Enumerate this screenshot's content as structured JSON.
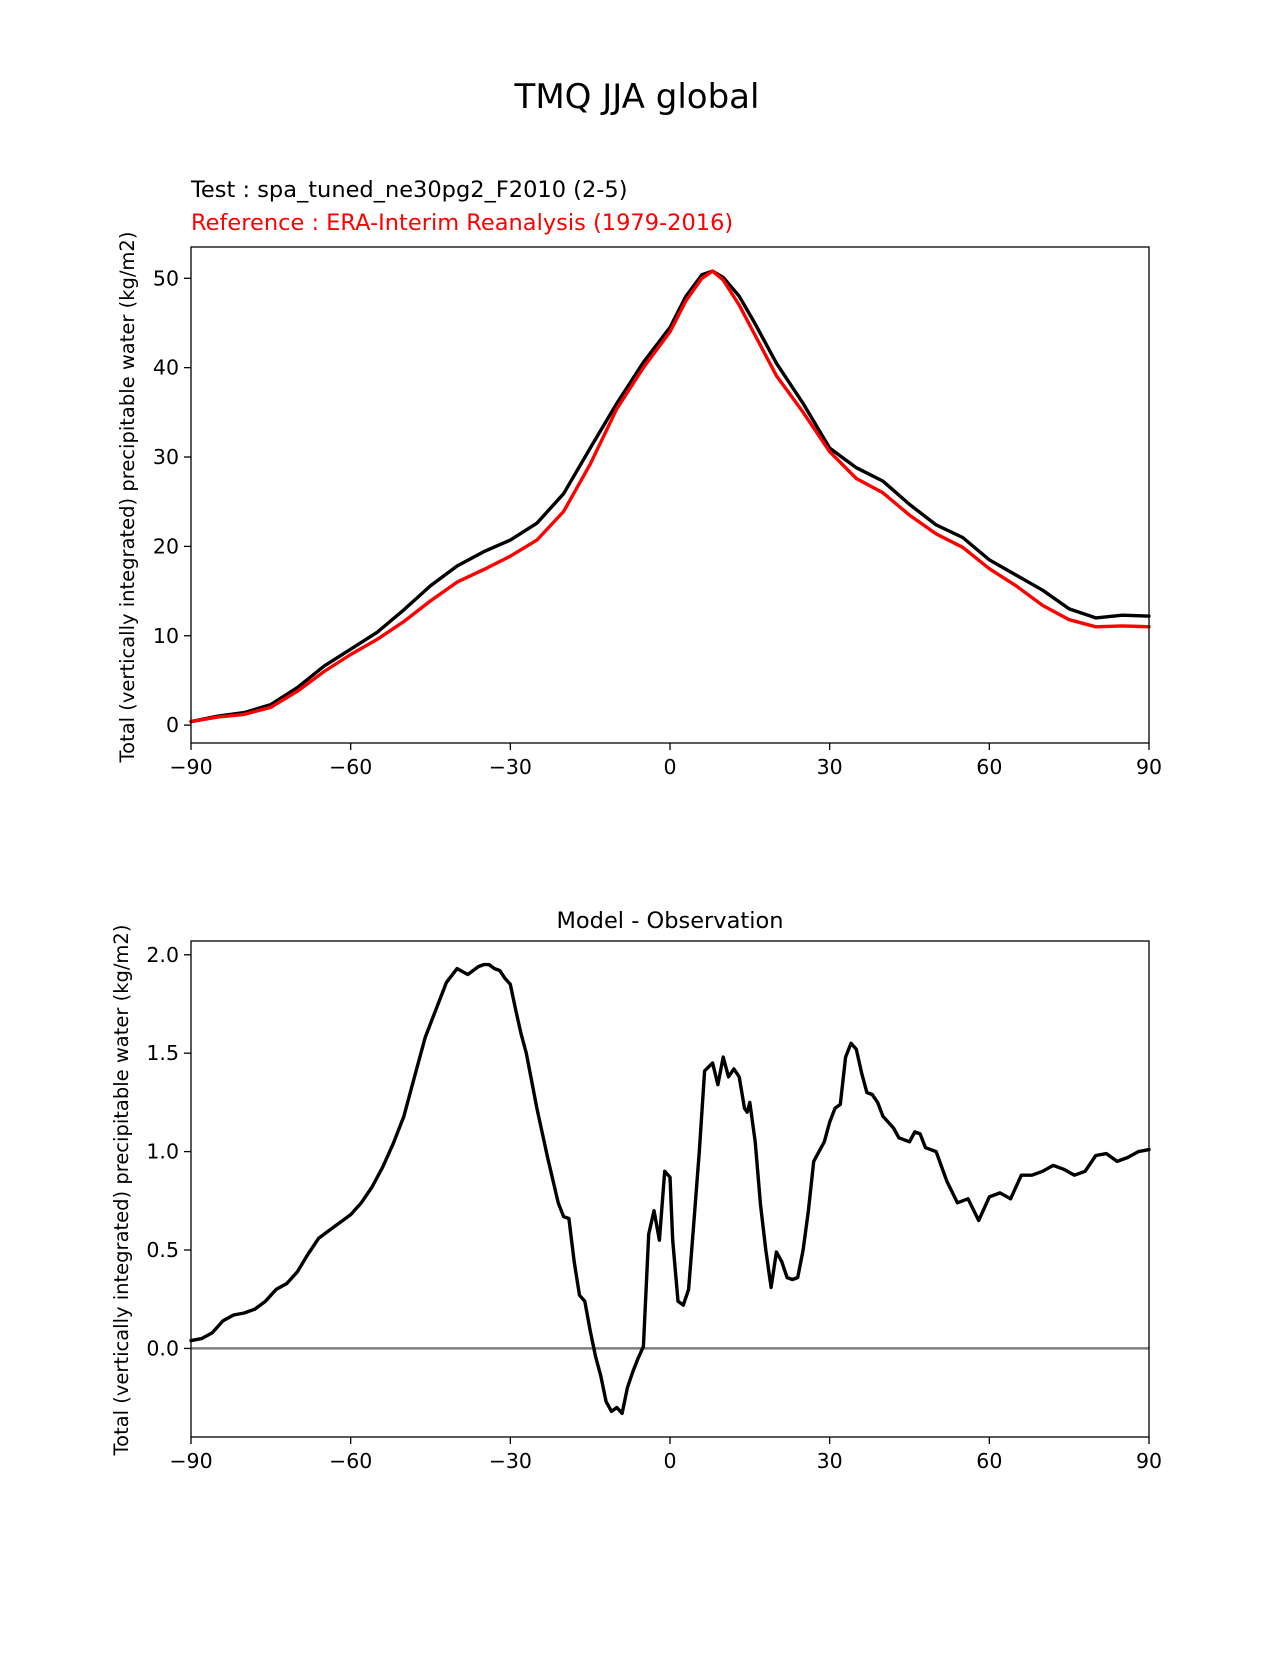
{
  "figure_title": "TMQ JJA global",
  "chart_data": [
    {
      "type": "line",
      "title_test": "Test : spa_tuned_ne30pg2_F2010 (2-5)",
      "title_reference": "Reference : ERA-Interim Reanalysis (1979-2016)",
      "ylabel": "Total (vertically integrated) precipitable water (kg/m2)",
      "xlabel": "",
      "xlim": [
        -90,
        90
      ],
      "ylim": [
        -2,
        53.5
      ],
      "xticks": [
        -90,
        -60,
        -30,
        0,
        30,
        60,
        90
      ],
      "xtick_labels": [
        "−90",
        "−60",
        "−30",
        "0",
        "30",
        "60",
        "90"
      ],
      "yticks": [
        0,
        10,
        20,
        30,
        40,
        50
      ],
      "ytick_labels": [
        "0",
        "10",
        "20",
        "30",
        "40",
        "50"
      ],
      "colors": {
        "test": "#000000",
        "reference": "#ff0000"
      },
      "x": [
        -90,
        -85,
        -80,
        -75,
        -70,
        -65,
        -60,
        -55,
        -50,
        -45,
        -40,
        -35,
        -30,
        -25,
        -20,
        -15,
        -10,
        -5,
        0,
        3,
        6,
        8,
        10,
        13,
        16,
        20,
        25,
        30,
        35,
        40,
        45,
        50,
        55,
        60,
        65,
        70,
        75,
        80,
        85,
        90
      ],
      "series": [
        {
          "key": "test",
          "values": [
            0.4,
            1.0,
            1.4,
            2.3,
            4.2,
            6.6,
            8.5,
            10.4,
            12.9,
            15.6,
            17.8,
            19.4,
            20.7,
            22.6,
            25.9,
            31.0,
            36.0,
            40.6,
            44.5,
            48.0,
            50.4,
            50.8,
            50.1,
            48.0,
            44.9,
            40.5,
            36.0,
            31.0,
            28.8,
            27.3,
            24.7,
            22.4,
            21.0,
            18.5,
            16.8,
            15.1,
            13.0,
            12.0,
            12.3,
            12.2
          ]
        },
        {
          "key": "reference",
          "values": [
            0.4,
            0.9,
            1.2,
            2.0,
            3.8,
            6.0,
            7.9,
            9.6,
            11.6,
            13.9,
            16.0,
            17.4,
            18.9,
            20.7,
            23.9,
            29.2,
            35.4,
            40.0,
            44.0,
            47.5,
            50.0,
            50.8,
            49.8,
            47.0,
            43.6,
            39.1,
            35.0,
            30.6,
            27.6,
            26.0,
            23.5,
            21.4,
            19.9,
            17.5,
            15.6,
            13.4,
            11.8,
            11.0,
            11.1,
            11.0
          ]
        }
      ]
    },
    {
      "type": "line",
      "title": "Model - Observation",
      "ylabel": "Total (vertically integrated) precipitable water (kg/m2)",
      "xlabel": "",
      "xlim": [
        -90,
        90
      ],
      "ylim": [
        -0.45,
        2.07
      ],
      "xticks": [
        -90,
        -60,
        -30,
        0,
        30,
        60,
        90
      ],
      "xtick_labels": [
        "−90",
        "−60",
        "−30",
        "0",
        "30",
        "60",
        "90"
      ],
      "yticks": [
        0,
        0.5,
        1.0,
        1.5,
        2.0
      ],
      "ytick_labels": [
        "0.0",
        "0.5",
        "1.0",
        "1.5",
        "2.0"
      ],
      "zero_line": true,
      "colors": {
        "diff": "#000000",
        "zero_line": "#808080"
      },
      "x": [
        -90,
        -88,
        -86,
        -84,
        -82,
        -80,
        -78,
        -76,
        -74,
        -72,
        -70,
        -68,
        -66,
        -64,
        -62,
        -60,
        -58,
        -56,
        -54,
        -52,
        -50,
        -48,
        -46,
        -44,
        -42,
        -40,
        -38,
        -36,
        -35,
        -34,
        -33,
        -32,
        -31,
        -30,
        -29,
        -28,
        -27,
        -25,
        -23,
        -21,
        -20,
        -19,
        -18,
        -17,
        -16,
        -15,
        -14,
        -13,
        -12,
        -11,
        -10,
        -9,
        -8,
        -7,
        -6,
        -5,
        -4,
        -3,
        -2,
        -1,
        0,
        0.5,
        1.5,
        2.5,
        3.5,
        4.5,
        5.5,
        6.5,
        8,
        9,
        10,
        11,
        12,
        13,
        14,
        14.5,
        15,
        16,
        17,
        18,
        19,
        20,
        21,
        22,
        23,
        24,
        25,
        26,
        27,
        28,
        29,
        30,
        31,
        32,
        33,
        34,
        35,
        36,
        37,
        38,
        39,
        40,
        41,
        42,
        43,
        44,
        45,
        46,
        47,
        48,
        49,
        50,
        52,
        54,
        56,
        58,
        60,
        62,
        64,
        66,
        68,
        70,
        72,
        74,
        76,
        78,
        80,
        82,
        84,
        86,
        88,
        90
      ],
      "series": [
        {
          "key": "diff",
          "values": [
            0.04,
            0.05,
            0.08,
            0.14,
            0.17,
            0.18,
            0.2,
            0.24,
            0.3,
            0.33,
            0.39,
            0.48,
            0.56,
            0.6,
            0.64,
            0.68,
            0.74,
            0.82,
            0.92,
            1.04,
            1.18,
            1.38,
            1.58,
            1.72,
            1.86,
            1.93,
            1.9,
            1.94,
            1.95,
            1.95,
            1.93,
            1.92,
            1.88,
            1.85,
            1.72,
            1.6,
            1.5,
            1.22,
            0.97,
            0.74,
            0.67,
            0.66,
            0.44,
            0.27,
            0.24,
            0.09,
            -0.04,
            -0.14,
            -0.27,
            -0.32,
            -0.3,
            -0.33,
            -0.2,
            -0.12,
            -0.05,
            0.01,
            0.58,
            0.7,
            0.55,
            0.9,
            0.87,
            0.55,
            0.24,
            0.22,
            0.3,
            0.65,
            1.0,
            1.41,
            1.45,
            1.34,
            1.48,
            1.38,
            1.42,
            1.38,
            1.22,
            1.2,
            1.25,
            1.05,
            0.73,
            0.5,
            0.31,
            0.49,
            0.44,
            0.36,
            0.35,
            0.36,
            0.5,
            0.7,
            0.95,
            1.0,
            1.05,
            1.15,
            1.22,
            1.24,
            1.48,
            1.55,
            1.52,
            1.4,
            1.3,
            1.29,
            1.25,
            1.18,
            1.15,
            1.12,
            1.07,
            1.06,
            1.05,
            1.1,
            1.09,
            1.02,
            1.01,
            1.0,
            0.85,
            0.74,
            0.76,
            0.65,
            0.77,
            0.79,
            0.76,
            0.88,
            0.88,
            0.9,
            0.93,
            0.91,
            0.88,
            0.9,
            0.98,
            0.99,
            0.95,
            0.97,
            1.0,
            1.01
          ]
        }
      ]
    }
  ]
}
